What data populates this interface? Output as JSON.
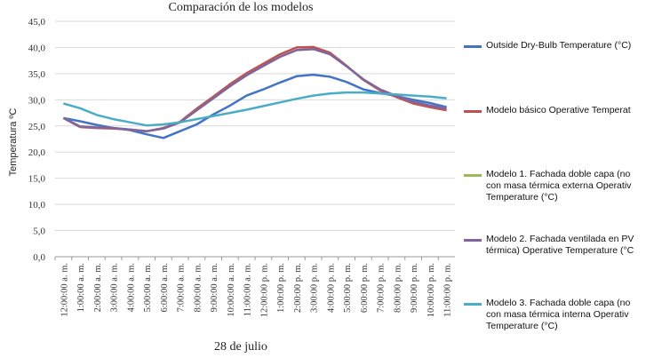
{
  "chart_data": {
    "type": "line",
    "title": "Comparación de los modelos",
    "ylabel": "Temperatura ºC",
    "xlabel": "28 de julio",
    "ylim": [
      0,
      45
    ],
    "yticks": [
      "0,0",
      "5,0",
      "10,0",
      "15,0",
      "20,0",
      "25,0",
      "30,0",
      "35,0",
      "40,0",
      "45,0"
    ],
    "grid": true,
    "legend_position": "right",
    "categories": [
      "12:00:00 a. m.",
      "1:00:00 a. m.",
      "2:00:00 a. m.",
      "3:00:00 a. m.",
      "4:00:00 a. m.",
      "5:00:00 a. m.",
      "6:00:00 a. m.",
      "7:00:00 a. m.",
      "8:00:00 a. m.",
      "9:00:00 a. m.",
      "10:00:00 a. m.",
      "11:00:00 a. m.",
      "12:00:00 p. m.",
      "1:00:00 p. m.",
      "2:00:00 p. m.",
      "3:00:00 p. m.",
      "4:00:00 p. m.",
      "5:00:00 p. m.",
      "6:00:00 p. m.",
      "7:00:00 p. m.",
      "8:00:00 p. m.",
      "9:00:00 p. m.",
      "10:00:00 p. m.",
      "11:00:00 p. m."
    ],
    "series": [
      {
        "name": "Outside Dry-Bulb Temperature (°C)",
        "color": "#4472C4",
        "values": [
          26.5,
          25.9,
          25.2,
          24.6,
          24.2,
          23.4,
          22.7,
          24.0,
          25.3,
          27.2,
          28.9,
          30.8,
          32.0,
          33.3,
          34.5,
          34.8,
          34.4,
          33.4,
          32.0,
          31.3,
          30.7,
          30.0,
          29.4,
          28.6
        ]
      },
      {
        "name": "Modelo básico Operative Temperat",
        "color": "#C0504D",
        "values": [
          26.5,
          24.8,
          24.6,
          24.5,
          24.3,
          24.0,
          24.6,
          25.8,
          28.3,
          30.6,
          33.0,
          35.1,
          36.9,
          38.7,
          40.0,
          40.1,
          39.0,
          36.5,
          33.8,
          31.8,
          30.5,
          29.3,
          28.6,
          28.0
        ]
      },
      {
        "name": "Modelo 1. Fachada doble capa (no\ncon masa térmica externa  Operativ\nTemperature (°C)",
        "color": "#9BBB59",
        "values": [
          26.5,
          24.9,
          24.7,
          24.6,
          24.3,
          24.0,
          24.5,
          25.7,
          28.0,
          30.3,
          32.6,
          34.7,
          36.5,
          38.2,
          39.5,
          39.7,
          38.7,
          36.4,
          33.9,
          32.0,
          30.7,
          29.6,
          28.9,
          28.3
        ]
      },
      {
        "name": "Modelo 2. Fachada ventilada en PV\ntérmica) Operative Temperature (°C",
        "color": "#8064A2",
        "values": [
          26.5,
          24.9,
          24.7,
          24.6,
          24.3,
          24.0,
          24.5,
          25.7,
          28.0,
          30.3,
          32.6,
          34.7,
          36.5,
          38.2,
          39.5,
          39.7,
          38.7,
          36.4,
          33.9,
          32.0,
          30.7,
          29.6,
          28.9,
          28.3
        ]
      },
      {
        "name": "Modelo 3. Fachada doble capa (no\ncon masa térmica interna  Operativ\nTemperature (°C)",
        "color": "#4BACC6",
        "values": [
          29.3,
          28.4,
          27.1,
          26.3,
          25.7,
          25.1,
          25.3,
          25.7,
          26.3,
          26.9,
          27.5,
          28.1,
          28.8,
          29.5,
          30.2,
          30.8,
          31.2,
          31.4,
          31.4,
          31.2,
          31.0,
          30.8,
          30.6,
          30.3
        ]
      }
    ]
  }
}
